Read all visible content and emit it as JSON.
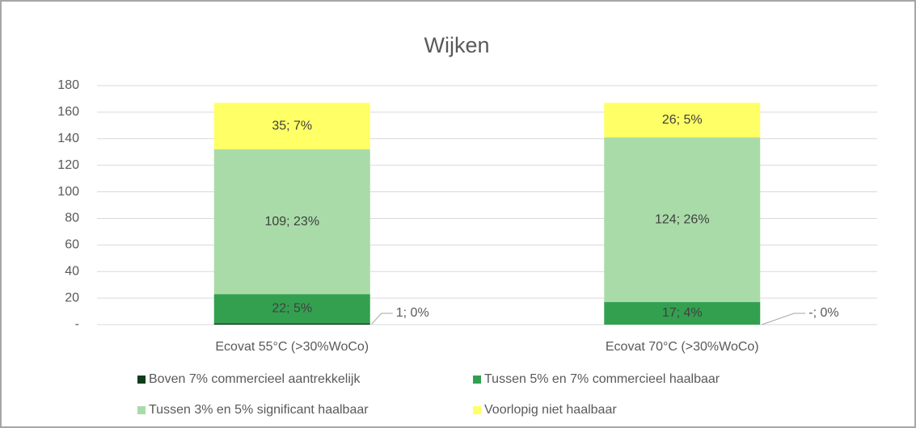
{
  "chart_data": {
    "type": "stacked_bar",
    "title": "Wijken",
    "categories": [
      "Ecovat 55°C (>30%WoCo)",
      "Ecovat 70°C (>30%WoCo)"
    ],
    "series": [
      {
        "name": "Boven 7% commercieel aantrekkelijk",
        "color": "#0f3d1c",
        "values": [
          1,
          0
        ],
        "value_labels": [
          "1; 0%",
          "-; 0%"
        ]
      },
      {
        "name": "Tussen 5% en 7% commercieel haalbaar",
        "color": "#33a04f",
        "values": [
          22,
          17
        ],
        "value_labels": [
          "22; 5%",
          "17; 4%"
        ]
      },
      {
        "name": "Tussen 3% en 5% significant haalbaar",
        "color": "#a9dba8",
        "values": [
          109,
          124
        ],
        "value_labels": [
          "109; 23%",
          "124; 26%"
        ]
      },
      {
        "name": "Voorlopig niet haalbaar",
        "color": "#ffff66",
        "values": [
          35,
          26
        ],
        "value_labels": [
          "35; 7%",
          "26; 5%"
        ]
      }
    ],
    "ylim": [
      0,
      180
    ],
    "yticks": [
      {
        "value": 0,
        "label": "-"
      },
      20,
      40,
      60,
      80,
      100,
      120,
      140,
      160,
      180
    ],
    "grid": true,
    "legend": "bottom"
  }
}
